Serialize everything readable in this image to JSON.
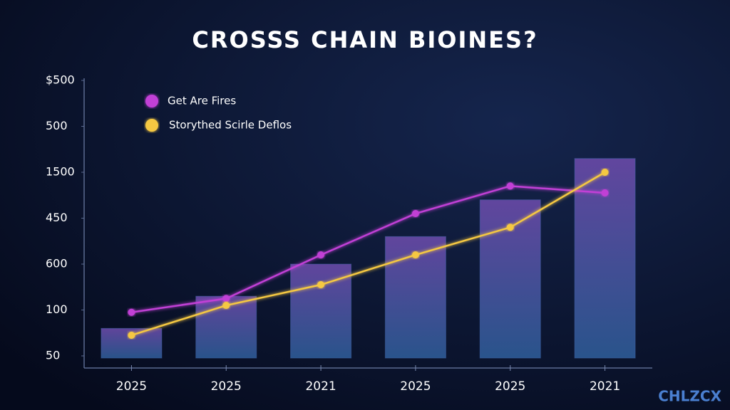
{
  "chart_data": {
    "type": "bar",
    "title": "CROSSS CHAIN BIOINES?",
    "watermark": "CHLZCX",
    "categories": [
      "2025",
      "2025",
      "2021",
      "2025",
      "2025",
      "2021"
    ],
    "values": [
      0.6,
      1.3,
      2.0,
      2.6,
      3.4,
      4.3
    ],
    "color": "#3f63a8",
    "series": [
      {
        "name": "Get Are Fires",
        "color": "#c13fd6",
        "values": [
          0.95,
          1.25,
          2.2,
          3.1,
          3.7,
          3.55
        ]
      },
      {
        "name": "Storythed Scirle Deflos",
        "color": "#f5c842",
        "values": [
          0.45,
          1.1,
          1.55,
          2.2,
          2.8,
          4.0
        ]
      }
    ],
    "ylim": [
      0,
      6
    ],
    "yticks": [
      {
        "value": 0,
        "label": "50"
      },
      {
        "value": 1,
        "label": "100"
      },
      {
        "value": 2,
        "label": "600"
      },
      {
        "value": 3,
        "label": "450"
      },
      {
        "value": 4,
        "label": "1500"
      },
      {
        "value": 5,
        "label": "500"
      },
      {
        "value": 6,
        "label": "$500"
      }
    ],
    "legend": "top-left"
  }
}
